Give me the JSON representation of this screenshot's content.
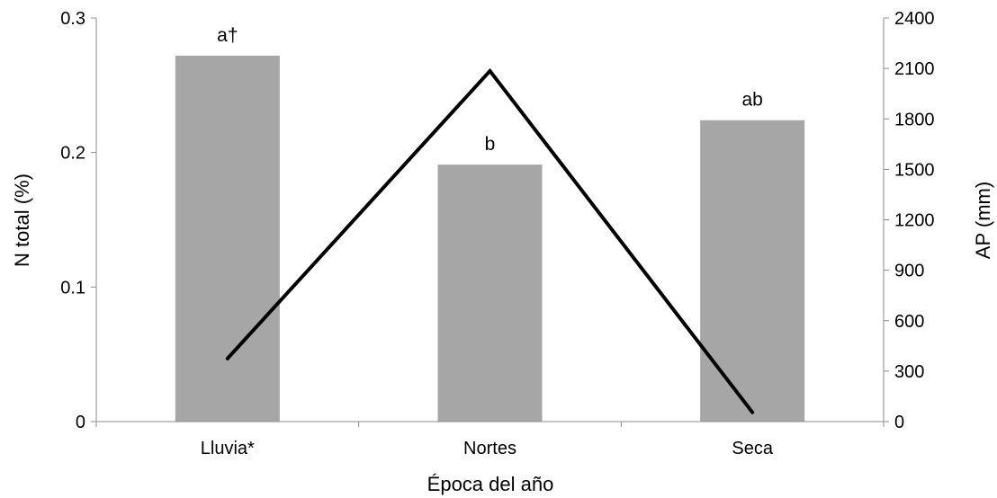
{
  "chart_data": {
    "type": "bar",
    "categories": [
      "Lluvia*",
      "Nortes",
      "Seca"
    ],
    "xlabel": "Época del año",
    "series": [
      {
        "name": "",
        "type": "bar",
        "axis": "left",
        "values": [
          0.272,
          0.191,
          0.224
        ],
        "labels": [
          "a†",
          "b",
          "ab"
        ],
        "color": "#a6a6a6"
      },
      {
        "name": "",
        "type": "line",
        "axis": "right",
        "values": [
          375,
          2085,
          55
        ],
        "color": "#000000"
      }
    ],
    "y_left": {
      "label": "N total (%)",
      "ylim": [
        0,
        0.3
      ],
      "ticks": [
        0,
        0.1,
        0.2,
        0.3
      ],
      "tick_labels": [
        "0",
        "0.1",
        "0.2",
        "0.3"
      ]
    },
    "y_right": {
      "label": "AP (mm)",
      "ylim": [
        0,
        2400
      ],
      "ticks": [
        0,
        300,
        600,
        900,
        1200,
        1500,
        1800,
        2100,
        2400
      ],
      "tick_labels": [
        "0",
        "300",
        "600",
        "900",
        "1200",
        "1500",
        "1800",
        "2100",
        "2400"
      ]
    },
    "grid": false,
    "legend": "none"
  }
}
